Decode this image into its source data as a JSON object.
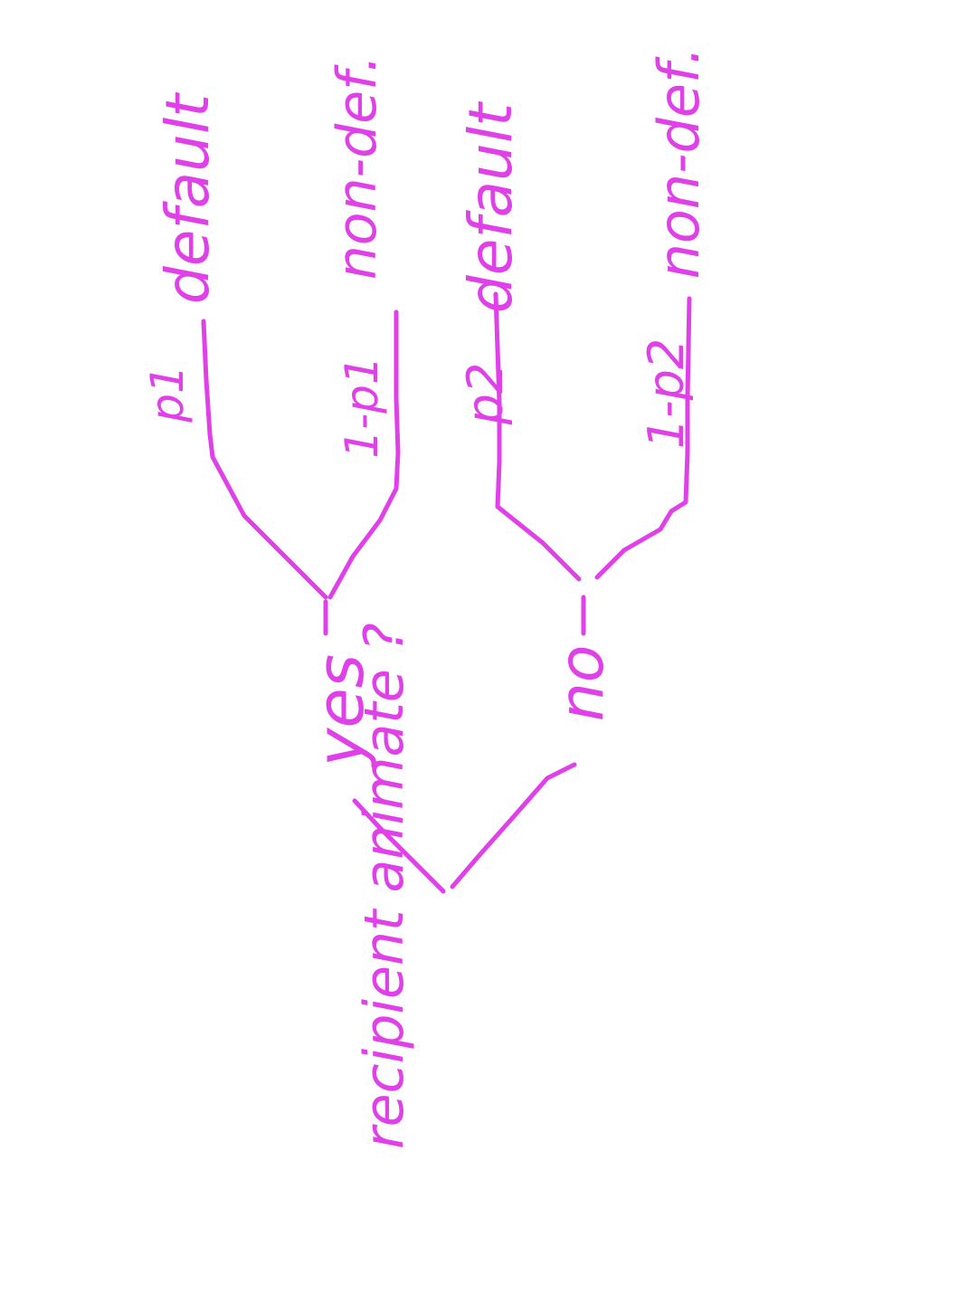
{
  "colors": {
    "ink": "#e040e8",
    "background": "#ffffff"
  },
  "diagram": {
    "type": "decision-tree",
    "root": {
      "label": "recipient animate ?"
    },
    "branches": [
      {
        "label": "yes",
        "outcomes": [
          {
            "prob": "p1",
            "result": "default"
          },
          {
            "prob": "1-p1",
            "result": "non-def."
          }
        ]
      },
      {
        "label": "no",
        "outcomes": [
          {
            "prob": "p2",
            "result": "default"
          },
          {
            "prob": "1-p2",
            "result": "non-def."
          }
        ]
      }
    ]
  }
}
